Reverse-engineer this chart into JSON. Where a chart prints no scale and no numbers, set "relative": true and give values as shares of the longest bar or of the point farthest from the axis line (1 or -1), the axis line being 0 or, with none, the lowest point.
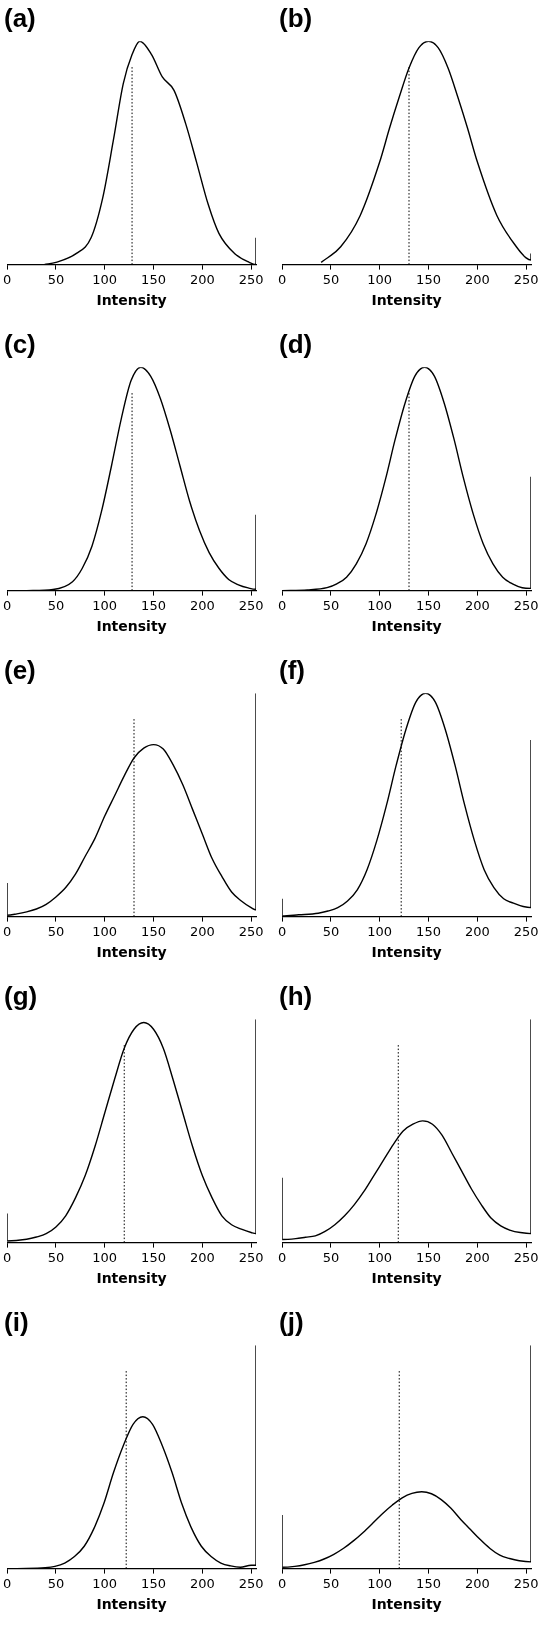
{
  "chart_data": [
    {
      "type": "line",
      "title": "(a)",
      "xlabel": "Intensity",
      "relative": true,
      "xlim": [
        0,
        255
      ],
      "xticks": [
        0,
        50,
        100,
        150,
        200,
        250
      ],
      "marker": "none",
      "grid": false,
      "legend": false,
      "ref_lines": [
        {
          "axis": "x",
          "value": 128,
          "line_style": "dotted"
        }
      ],
      "series": [
        {
          "color": "#000000",
          "x": [
            38,
            50,
            71,
            86,
            98,
            109,
            119,
            128,
            136,
            148,
            159,
            171,
            183,
            194,
            206,
            217,
            233,
            248,
            255,
            255
          ],
          "values": [
            0,
            0.01,
            0.05,
            0.12,
            0.3,
            0.56,
            0.81,
            0.94,
            1,
            0.94,
            0.84,
            0.78,
            0.63,
            0.46,
            0.27,
            0.14,
            0.05,
            0.01,
            0,
            0.12
          ]
        }
      ]
    },
    {
      "type": "line",
      "title": "(b)",
      "xlabel": "Intensity",
      "relative": true,
      "xlim": [
        0,
        255
      ],
      "xticks": [
        0,
        50,
        100,
        150,
        200,
        250
      ],
      "marker": "none",
      "grid": false,
      "legend": false,
      "ref_lines": [
        {
          "axis": "x",
          "value": 130,
          "line_style": "dotted"
        }
      ],
      "series": [
        {
          "color": "#000000",
          "x": [
            40,
            60,
            80,
            100,
            110,
            120,
            130,
            140,
            150,
            160,
            170,
            180,
            190,
            200,
            220,
            240,
            250,
            255,
            255
          ],
          "values": [
            0.01,
            0.08,
            0.22,
            0.46,
            0.61,
            0.75,
            0.88,
            0.97,
            1,
            0.97,
            0.88,
            0.75,
            0.61,
            0.46,
            0.22,
            0.08,
            0.03,
            0.02,
            0.05
          ]
        }
      ]
    },
    {
      "type": "line",
      "title": "(c)",
      "xlabel": "Intensity",
      "relative": true,
      "xlim": [
        0,
        255
      ],
      "xticks": [
        0,
        50,
        100,
        150,
        200,
        250
      ],
      "marker": "none",
      "grid": false,
      "legend": false,
      "ref_lines": [
        {
          "axis": "x",
          "value": 128,
          "line_style": "dotted"
        }
      ],
      "series": [
        {
          "color": "#000000",
          "x": [
            20,
            47,
            67,
            77,
            87,
            97,
            107,
            117,
            127,
            137,
            147,
            157,
            167,
            177,
            187,
            197,
            207,
            217,
            227,
            237,
            247,
            255,
            255
          ],
          "values": [
            0,
            0.005,
            0.04,
            0.1,
            0.2,
            0.36,
            0.56,
            0.77,
            0.94,
            1,
            0.96,
            0.86,
            0.72,
            0.56,
            0.4,
            0.27,
            0.17,
            0.1,
            0.05,
            0.026,
            0.012,
            0.006,
            0.34
          ]
        }
      ]
    },
    {
      "type": "line",
      "title": "(d)",
      "xlabel": "Intensity",
      "relative": true,
      "xlim": [
        0,
        255
      ],
      "xticks": [
        0,
        50,
        100,
        150,
        200,
        250
      ],
      "marker": "none",
      "grid": false,
      "legend": false,
      "ref_lines": [
        {
          "axis": "x",
          "value": 130,
          "line_style": "dotted"
        }
      ],
      "series": [
        {
          "color": "#000000",
          "x": [
            0,
            26,
            46,
            56,
            66,
            76,
            86,
            96,
            106,
            116,
            126,
            136,
            146,
            156,
            166,
            176,
            186,
            196,
            206,
            216,
            226,
            236,
            246,
            255,
            255
          ],
          "values": [
            0,
            0.003,
            0.013,
            0.03,
            0.06,
            0.12,
            0.21,
            0.34,
            0.5,
            0.68,
            0.84,
            0.96,
            1,
            0.96,
            0.84,
            0.68,
            0.5,
            0.34,
            0.21,
            0.12,
            0.06,
            0.03,
            0.013,
            0.01,
            0.51
          ]
        }
      ]
    },
    {
      "type": "line",
      "title": "(e)",
      "xlabel": "Intensity",
      "relative": true,
      "xlim": [
        0,
        255
      ],
      "xticks": [
        0,
        50,
        100,
        150,
        200,
        250
      ],
      "marker": "none",
      "grid": false,
      "legend": false,
      "ref_lines": [
        {
          "axis": "x",
          "value": 130,
          "line_style": "dotted"
        }
      ],
      "series": [
        {
          "color": "#000000",
          "x": [
            0,
            0,
            10,
            20,
            30,
            40,
            50,
            60,
            70,
            80,
            90,
            100,
            110,
            120,
            130,
            140,
            150,
            160,
            170,
            180,
            190,
            200,
            210,
            220,
            230,
            240,
            250,
            255,
            255
          ],
          "values": [
            0.15,
            0.006,
            0.012,
            0.021,
            0.034,
            0.055,
            0.088,
            0.13,
            0.19,
            0.27,
            0.35,
            0.45,
            0.54,
            0.63,
            0.71,
            0.754,
            0.77,
            0.75,
            0.68,
            0.59,
            0.48,
            0.37,
            0.26,
            0.18,
            0.11,
            0.07,
            0.04,
            0.03,
            1
          ]
        }
      ]
    },
    {
      "type": "line",
      "title": "(f)",
      "xlabel": "Intensity",
      "relative": true,
      "xlim": [
        0,
        255
      ],
      "xticks": [
        0,
        50,
        100,
        150,
        200,
        250
      ],
      "marker": "none",
      "grid": false,
      "legend": false,
      "ref_lines": [
        {
          "axis": "x",
          "value": 122,
          "line_style": "dotted"
        }
      ],
      "series": [
        {
          "color": "#000000",
          "x": [
            0,
            0,
            17,
            37,
            47,
            57,
            67,
            77,
            87,
            97,
            107,
            117,
            127,
            137,
            147,
            157,
            167,
            177,
            187,
            197,
            207,
            217,
            227,
            237,
            247,
            255,
            255
          ],
          "values": [
            0.08,
            0.003,
            0.008,
            0.015,
            0.025,
            0.04,
            0.07,
            0.12,
            0.21,
            0.34,
            0.5,
            0.68,
            0.84,
            0.96,
            1,
            0.96,
            0.84,
            0.68,
            0.5,
            0.34,
            0.21,
            0.13,
            0.08,
            0.06,
            0.045,
            0.04,
            0.79
          ]
        }
      ]
    },
    {
      "type": "line",
      "title": "(g)",
      "xlabel": "Intensity",
      "relative": true,
      "xlim": [
        0,
        255
      ],
      "xticks": [
        0,
        50,
        100,
        150,
        200,
        250
      ],
      "marker": "none",
      "grid": false,
      "legend": false,
      "ref_lines": [
        {
          "axis": "x",
          "value": 120,
          "line_style": "dotted"
        }
      ],
      "series": [
        {
          "color": "#000000",
          "x": [
            0,
            0,
            20,
            30,
            40,
            50,
            60,
            70,
            80,
            90,
            100,
            110,
            120,
            130,
            140,
            150,
            160,
            170,
            180,
            190,
            200,
            210,
            220,
            230,
            240,
            250,
            255,
            255
          ],
          "values": [
            0.13,
            0.007,
            0.015,
            0.025,
            0.04,
            0.07,
            0.12,
            0.2,
            0.3,
            0.43,
            0.58,
            0.73,
            0.87,
            0.955,
            0.985,
            0.955,
            0.87,
            0.73,
            0.58,
            0.43,
            0.3,
            0.2,
            0.12,
            0.08,
            0.06,
            0.045,
            0.04,
            1
          ]
        }
      ]
    },
    {
      "type": "line",
      "title": "(h)",
      "xlabel": "Intensity",
      "relative": true,
      "xlim": [
        0,
        255
      ],
      "xticks": [
        0,
        50,
        100,
        150,
        200,
        250
      ],
      "marker": "none",
      "grid": false,
      "legend": false,
      "ref_lines": [
        {
          "axis": "x",
          "value": 119,
          "line_style": "dotted"
        }
      ],
      "series": [
        {
          "color": "#000000",
          "x": [
            0,
            0,
            14,
            24,
            34,
            44,
            54,
            64,
            74,
            84,
            94,
            104,
            114,
            124,
            134,
            144,
            154,
            164,
            174,
            184,
            194,
            204,
            214,
            224,
            234,
            244,
            255,
            255
          ],
          "values": [
            0.29,
            0.014,
            0.018,
            0.024,
            0.03,
            0.05,
            0.08,
            0.12,
            0.17,
            0.23,
            0.3,
            0.37,
            0.44,
            0.5,
            0.53,
            0.545,
            0.53,
            0.48,
            0.4,
            0.32,
            0.24,
            0.17,
            0.11,
            0.075,
            0.055,
            0.045,
            0.04,
            1
          ]
        }
      ]
    },
    {
      "type": "line",
      "title": "(i)",
      "xlabel": "Intensity",
      "relative": true,
      "xlim": [
        0,
        255
      ],
      "xticks": [
        0,
        50,
        100,
        150,
        200,
        250
      ],
      "marker": "none",
      "grid": false,
      "legend": false,
      "ref_lines": [
        {
          "axis": "x",
          "value": 122,
          "line_style": "dotted"
        }
      ],
      "series": [
        {
          "color": "#000000",
          "x": [
            10,
            39,
            49,
            59,
            69,
            79,
            89,
            99,
            109,
            119,
            129,
            139,
            149,
            159,
            169,
            179,
            189,
            199,
            209,
            219,
            229,
            239,
            250,
            255,
            255
          ],
          "values": [
            0,
            0.004,
            0.01,
            0.025,
            0.054,
            0.1,
            0.18,
            0.29,
            0.43,
            0.55,
            0.646,
            0.68,
            0.646,
            0.55,
            0.43,
            0.29,
            0.18,
            0.1,
            0.054,
            0.025,
            0.012,
            0.006,
            0.015,
            0.015,
            1
          ]
        }
      ]
    },
    {
      "type": "line",
      "title": "(j)",
      "xlabel": "Intensity",
      "relative": true,
      "xlim": [
        0,
        255
      ],
      "xticks": [
        0,
        50,
        100,
        150,
        200,
        250
      ],
      "marker": "none",
      "grid": false,
      "legend": false,
      "ref_lines": [
        {
          "axis": "x",
          "value": 120,
          "line_style": "dotted"
        }
      ],
      "series": [
        {
          "color": "#000000",
          "x": [
            0,
            0,
            13,
            23,
            33,
            43,
            53,
            63,
            73,
            83,
            93,
            103,
            113,
            123,
            133,
            143,
            153,
            163,
            173,
            183,
            193,
            203,
            213,
            223,
            233,
            243,
            255,
            255
          ],
          "values": [
            0.24,
            0.006,
            0.01,
            0.017,
            0.028,
            0.043,
            0.064,
            0.091,
            0.124,
            0.162,
            0.204,
            0.247,
            0.285,
            0.317,
            0.337,
            0.344,
            0.335,
            0.309,
            0.27,
            0.22,
            0.175,
            0.13,
            0.09,
            0.06,
            0.045,
            0.035,
            0.03,
            1
          ]
        }
      ]
    }
  ]
}
